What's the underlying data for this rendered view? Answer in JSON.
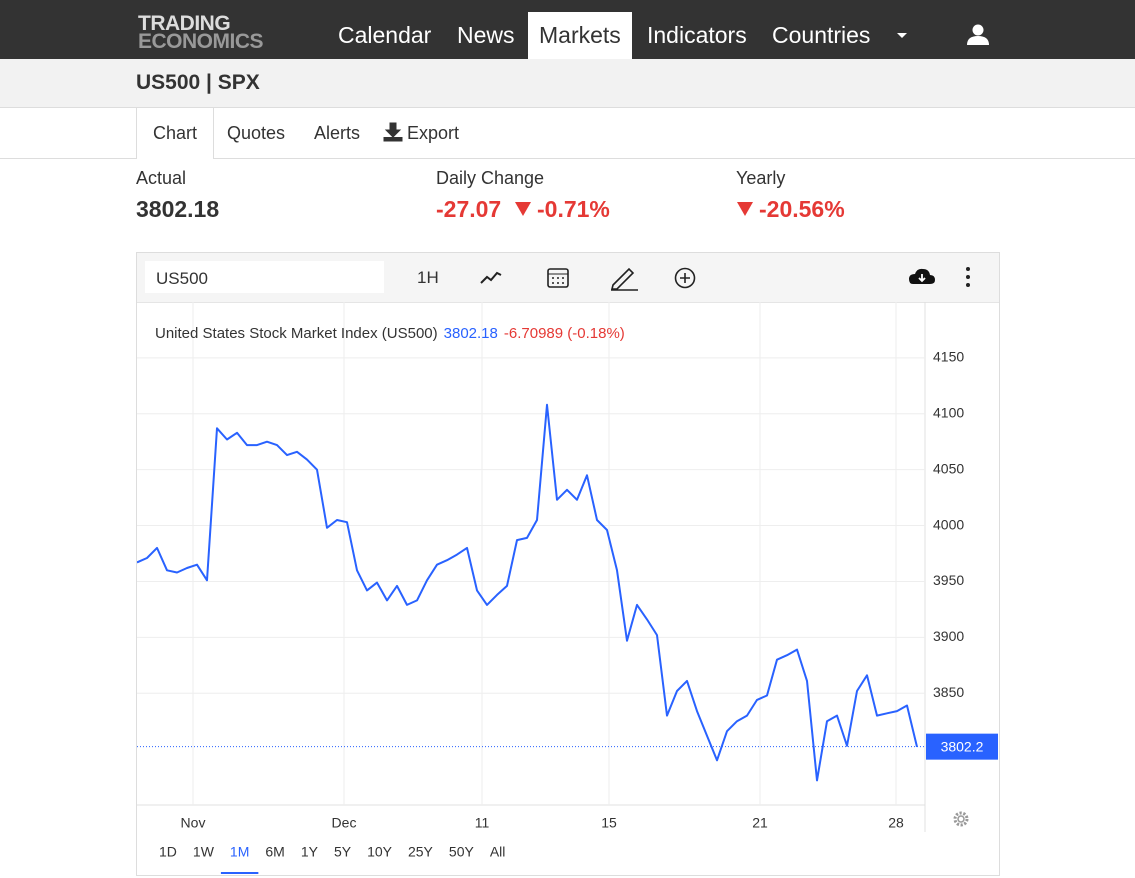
{
  "nav": {
    "logo": [
      "TRADING",
      "ECONOMICS"
    ],
    "items": [
      "Calendar",
      "News",
      "Markets",
      "Indicators",
      "Countries"
    ],
    "active": 2
  },
  "header": {
    "title": "US500 | SPX"
  },
  "tabs": [
    "Chart",
    "Quotes",
    "Alerts",
    "Export"
  ],
  "stats": [
    {
      "label": "Actual",
      "value": "3802.18"
    },
    {
      "label": "Daily Change",
      "value": "-27.07",
      "percent": "-0.71%"
    },
    {
      "label": "Yearly",
      "percent": "-20.56%"
    }
  ],
  "toolbar": {
    "symbol": "US500",
    "interval": "1H"
  },
  "chart_data": {
    "type": "line",
    "title": "United States Stock Market Index (US500)",
    "last": "3802.18",
    "change": "-6.70989 (-0.18%)",
    "color": "#2962ff",
    "values": [
      3967,
      3971,
      3980,
      3960,
      3958,
      3962,
      3965,
      3951,
      4087,
      4077,
      4083,
      4072,
      4072,
      4075,
      4072,
      4063,
      4066,
      4059,
      4050,
      3998,
      4005,
      4003,
      3960,
      3942,
      3949,
      3933,
      3946,
      3929,
      3933,
      3951,
      3965,
      3969,
      3974,
      3980,
      3942,
      3929,
      3938,
      3946,
      3987,
      3989,
      4005,
      4108,
      4023,
      4032,
      4023,
      4045,
      4005,
      3996,
      3960,
      3897,
      3929,
      3916,
      3902,
      3830,
      3852,
      3861,
      3834,
      3812,
      3790,
      3816,
      3825,
      3830,
      3844,
      3848,
      3880,
      3884,
      3889,
      3861,
      3772,
      3825,
      3830,
      3803,
      3852,
      3866,
      3830,
      3832,
      3834,
      3839,
      3802
    ],
    "xlim": [
      0,
      78.8
    ],
    "xticks": [
      {
        "value": 5.6,
        "label": "Nov"
      },
      {
        "value": 20.7,
        "label": "Dec"
      },
      {
        "value": 34.5,
        "label": "11"
      },
      {
        "value": 47.2,
        "label": "15"
      },
      {
        "value": 62.3,
        "label": "21"
      },
      {
        "value": 75.9,
        "label": "28"
      }
    ],
    "ylim": [
      3750,
      4200
    ],
    "yticks": [
      3850,
      3900,
      3950,
      4000,
      4050,
      4100,
      4150
    ],
    "grid": true,
    "last_price": 3802.2
  },
  "ranges": [
    "1D",
    "1W",
    "1M",
    "6M",
    "1Y",
    "5Y",
    "10Y",
    "25Y",
    "50Y",
    "All"
  ],
  "active_range": 2
}
